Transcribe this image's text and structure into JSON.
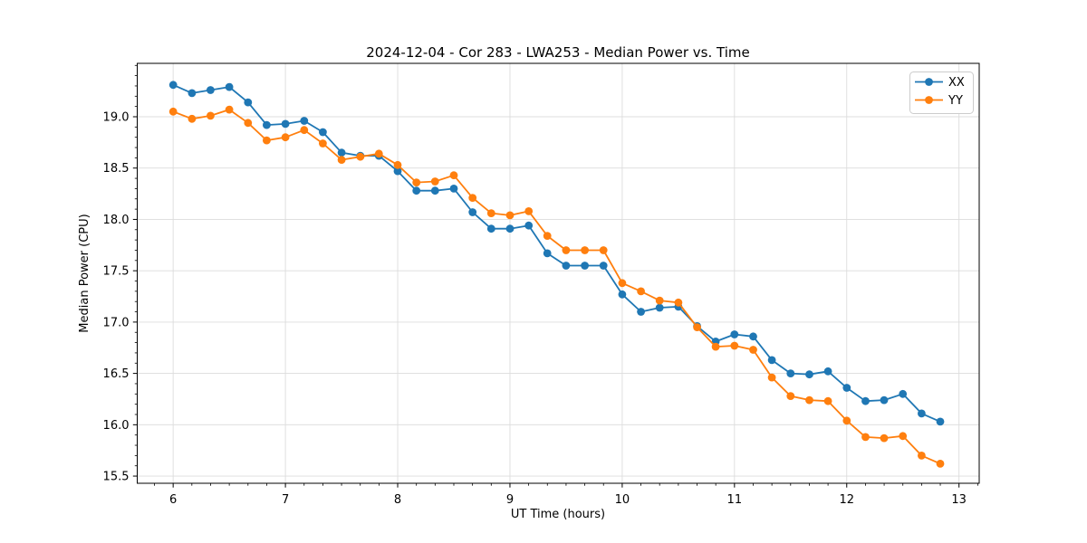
{
  "figure": {
    "background": "#ffffff",
    "frame_color": "#000000",
    "grid_color": "#dcdcdc",
    "tick_color": "#000000"
  },
  "chart_data": {
    "type": "line",
    "title": "2024-12-04 - Cor 283 - LWA253 - Median Power vs. Time",
    "xlabel": "UT Time (hours)",
    "ylabel": "Median Power (CPU)",
    "xlim": [
      5.68,
      13.18
    ],
    "ylim": [
      15.43,
      19.52
    ],
    "grid": true,
    "legend_position": "upper right",
    "xticks": [
      {
        "v": 6,
        "label": "6"
      },
      {
        "v": 7,
        "label": "7"
      },
      {
        "v": 8,
        "label": "8"
      },
      {
        "v": 9,
        "label": "9"
      },
      {
        "v": 10,
        "label": "10"
      },
      {
        "v": 11,
        "label": "11"
      },
      {
        "v": 12,
        "label": "12"
      },
      {
        "v": 13,
        "label": "13"
      }
    ],
    "yticks": [
      {
        "v": 15.5,
        "label": "15.5"
      },
      {
        "v": 16.0,
        "label": "16.0"
      },
      {
        "v": 16.5,
        "label": "16.5"
      },
      {
        "v": 17.0,
        "label": "17.0"
      },
      {
        "v": 17.5,
        "label": "17.5"
      },
      {
        "v": 18.0,
        "label": "18.0"
      },
      {
        "v": 18.5,
        "label": "18.5"
      },
      {
        "v": 19.0,
        "label": "19.0"
      }
    ],
    "x_minor_step": 0.1666667,
    "y_minor_step": 0.1,
    "x": [
      6.0,
      6.167,
      6.333,
      6.5,
      6.667,
      6.833,
      7.0,
      7.167,
      7.333,
      7.5,
      7.667,
      7.833,
      8.0,
      8.167,
      8.333,
      8.5,
      8.667,
      8.833,
      9.0,
      9.167,
      9.333,
      9.5,
      9.667,
      9.833,
      10.0,
      10.167,
      10.333,
      10.5,
      10.667,
      10.833,
      11.0,
      11.167,
      11.333,
      11.5,
      11.667,
      11.833,
      12.0,
      12.167,
      12.333,
      12.5,
      12.667,
      12.833
    ],
    "series": [
      {
        "name": "XX",
        "color": "#1f77b4",
        "values": [
          19.31,
          19.23,
          19.26,
          19.29,
          19.14,
          18.92,
          18.93,
          18.96,
          18.85,
          18.65,
          18.62,
          18.62,
          18.47,
          18.28,
          18.28,
          18.3,
          18.07,
          17.91,
          17.91,
          17.94,
          17.67,
          17.55,
          17.55,
          17.55,
          17.27,
          17.1,
          17.14,
          17.15,
          16.96,
          16.81,
          16.88,
          16.86,
          16.63,
          16.5,
          16.49,
          16.52,
          16.36,
          16.23,
          16.24,
          16.3,
          16.11,
          16.03
        ]
      },
      {
        "name": "YY",
        "color": "#ff7f0e",
        "values": [
          19.05,
          18.98,
          19.01,
          19.07,
          18.94,
          18.77,
          18.8,
          18.87,
          18.74,
          18.58,
          18.61,
          18.64,
          18.53,
          18.36,
          18.37,
          18.43,
          18.21,
          18.06,
          18.04,
          18.08,
          17.84,
          17.7,
          17.7,
          17.7,
          17.38,
          17.3,
          17.21,
          17.19,
          16.95,
          16.76,
          16.77,
          16.73,
          16.46,
          16.28,
          16.24,
          16.23,
          16.04,
          15.88,
          15.87,
          15.89,
          15.7,
          15.62
        ]
      }
    ]
  }
}
